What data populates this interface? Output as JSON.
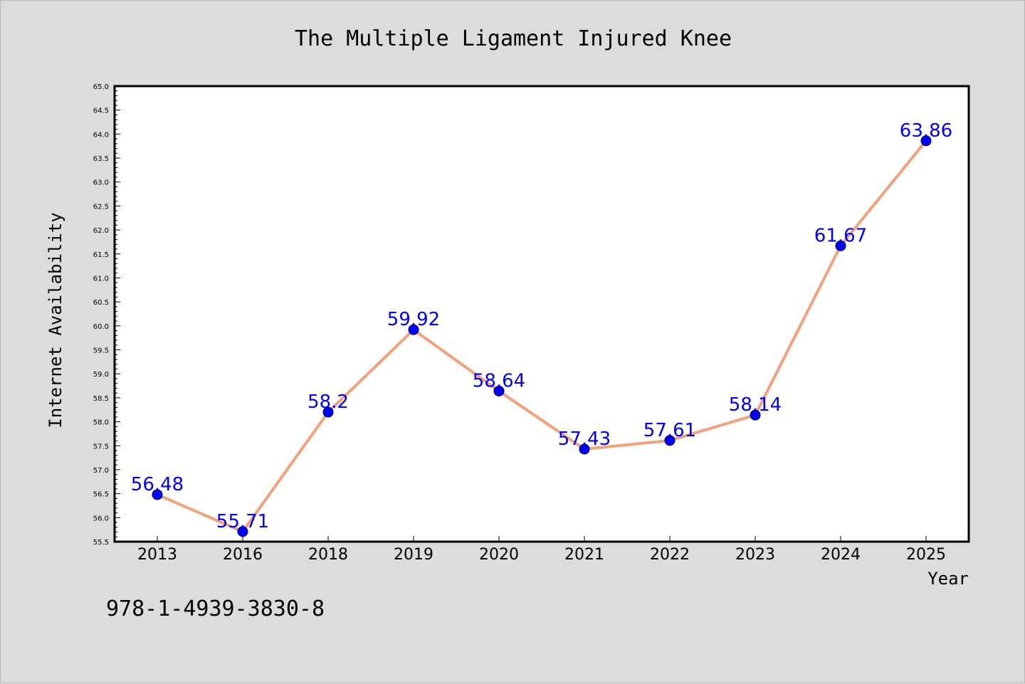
{
  "chart_data": {
    "type": "line",
    "title": "The Multiple Ligament Injured Knee",
    "xlabel": "Year",
    "ylabel": "Internet Availability",
    "categories": [
      "2013",
      "2016",
      "2018",
      "2019",
      "2020",
      "2021",
      "2022",
      "2023",
      "2024",
      "2025"
    ],
    "values": [
      56.48,
      55.71,
      58.2,
      59.92,
      58.64,
      57.43,
      57.61,
      58.14,
      61.67,
      63.86
    ],
    "value_labels": [
      "56.48",
      "55.71",
      "58.2",
      "59.92",
      "58.64",
      "57.43",
      "57.61",
      "58.14",
      "61.67",
      "63.86"
    ],
    "ylim": [
      55.5,
      65.0
    ],
    "ytick_step": 0.5,
    "grid": false,
    "legend": "none",
    "colors": {
      "line": "#f4a07c",
      "marker": "#0000ff",
      "data_label": "#0000ff"
    }
  },
  "footer": {
    "isbn": "978-1-4939-3830-8"
  }
}
